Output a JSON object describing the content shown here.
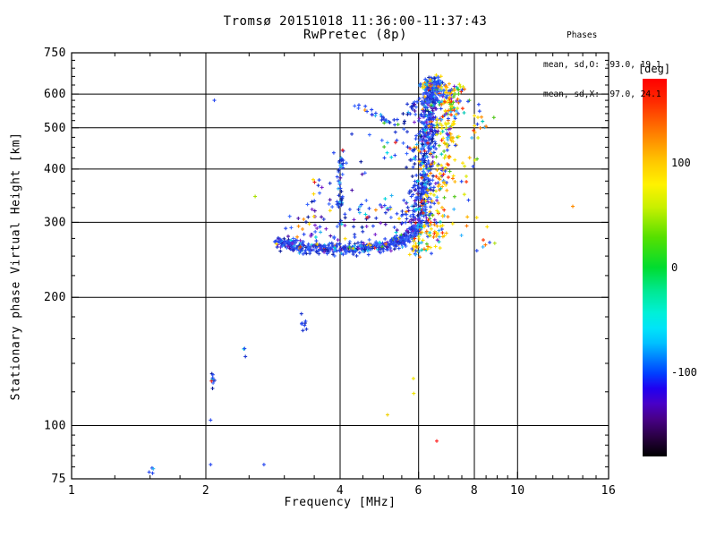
{
  "chart_data": {
    "type": "scatter",
    "title": "Tromsø 20151018 11:36:00-11:37:43",
    "subtitle": "RwPretec (8p)",
    "annotation": {
      "header": "Phases",
      "line_o": "mean, sd,O: -93.0, 19.1",
      "line_x": "mean, sd,X:  97.0, 24.1"
    },
    "xlabel": "Frequency [MHz]",
    "ylabel": "Stationary phase Virtual Height [km]",
    "x_scale": "log",
    "y_scale": "log",
    "xlim": [
      1,
      16
    ],
    "ylim": [
      75,
      750
    ],
    "x_major": [
      1,
      2,
      4,
      6,
      8,
      10,
      16
    ],
    "x_grid": [
      2,
      4,
      6,
      8,
      10
    ],
    "x_minor": [
      1.25,
      1.5,
      1.75,
      2.5,
      3,
      3.5,
      4.5,
      5,
      5.5,
      6.5,
      7,
      7.5,
      8.5,
      9,
      9.5,
      11,
      12,
      13,
      14,
      15
    ],
    "y_major": [
      75,
      100,
      200,
      300,
      400,
      500,
      600,
      750
    ],
    "y_grid": [
      100,
      200,
      300,
      400,
      500,
      600
    ],
    "y_minor": [
      80,
      85,
      90,
      95,
      120,
      140,
      160,
      180,
      225,
      250,
      275,
      325,
      350,
      375,
      425,
      450,
      475,
      520,
      540,
      560,
      580,
      630,
      660,
      690,
      720
    ],
    "grid": true,
    "colorbar": {
      "label": "[deg]",
      "range": [
        -180,
        180
      ],
      "ticks": [
        {
          "value": 100
        },
        {
          "value": 0
        },
        {
          "value": -100
        }
      ],
      "stops": [
        [
          0,
          "#ff0000"
        ],
        [
          6,
          "#ff2a00"
        ],
        [
          14,
          "#ff7a00"
        ],
        [
          22,
          "#ffc800"
        ],
        [
          28,
          "#fff200"
        ],
        [
          34,
          "#c8f000"
        ],
        [
          42,
          "#55e000"
        ],
        [
          50,
          "#00dc30"
        ],
        [
          56,
          "#00e890"
        ],
        [
          62,
          "#00f0d8"
        ],
        [
          66,
          "#00e4f8"
        ],
        [
          70,
          "#00c0ff"
        ],
        [
          74,
          "#0080ff"
        ],
        [
          78,
          "#0040ff"
        ],
        [
          82,
          "#2000f0"
        ],
        [
          86,
          "#4800c8"
        ],
        [
          90,
          "#480088"
        ],
        [
          95,
          "#280040"
        ],
        [
          100,
          "#000000"
        ]
      ]
    },
    "seed": 20151018,
    "palettes": {
      "O": [
        [
          "#2547f0",
          30
        ],
        [
          "#1c35cf",
          16
        ],
        [
          "#3b69ff",
          16
        ],
        [
          "#0f1f9c",
          8
        ],
        [
          "#2ab3f2",
          7
        ],
        [
          "#7a22cc",
          5
        ],
        [
          "#4a10a8",
          3
        ],
        [
          "#00d4dc",
          3
        ],
        [
          "#ffd800",
          2
        ],
        [
          "#ff8c00",
          2
        ],
        [
          "#e82020",
          1.5
        ],
        [
          "#3fc420",
          1.5
        ]
      ],
      "OS": [
        [
          "#2547f0",
          22
        ],
        [
          "#1c35cf",
          10
        ],
        [
          "#3b69ff",
          12
        ],
        [
          "#0f1f9c",
          6
        ],
        [
          "#2ab3f2",
          8
        ],
        [
          "#7a22cc",
          8
        ],
        [
          "#4a10a8",
          5
        ],
        [
          "#00d4dc",
          5
        ],
        [
          "#ffd800",
          3
        ],
        [
          "#ff8c00",
          3
        ],
        [
          "#e82020",
          2
        ],
        [
          "#3fc420",
          3
        ]
      ],
      "X": [
        [
          "#ffe000",
          20
        ],
        [
          "#ffb400",
          13
        ],
        [
          "#ff7800",
          9
        ],
        [
          "#ff3000",
          7
        ],
        [
          "#dce800",
          9
        ],
        [
          "#54c81e",
          8
        ],
        [
          "#00c8b4",
          5
        ],
        [
          "#33b4ff",
          5
        ],
        [
          "#2547f0",
          8
        ],
        [
          "#7a22cc",
          3
        ]
      ],
      "XS": [
        [
          "#ffe000",
          14
        ],
        [
          "#ffb400",
          10
        ],
        [
          "#ff7800",
          8
        ],
        [
          "#ff3000",
          6
        ],
        [
          "#dce800",
          6
        ],
        [
          "#54c81e",
          6
        ],
        [
          "#00c8b4",
          4
        ],
        [
          "#33b4ff",
          6
        ],
        [
          "#2547f0",
          12
        ],
        [
          "#7a22cc",
          3
        ]
      ],
      "MIX": [
        [
          "#2547f0",
          22
        ],
        [
          "#1c35cf",
          10
        ],
        [
          "#3b69ff",
          12
        ],
        [
          "#2ab3f2",
          6
        ],
        [
          "#7a22cc",
          4
        ],
        [
          "#ffe000",
          12
        ],
        [
          "#ffb400",
          9
        ],
        [
          "#ff7800",
          6
        ],
        [
          "#ff3000",
          5
        ],
        [
          "#54c81e",
          5
        ],
        [
          "#00c8b4",
          3
        ],
        [
          "#dce800",
          6
        ]
      ],
      "GB": [
        [
          "#66dd22",
          1
        ],
        [
          "#2547f0",
          2
        ],
        [
          "#2ab3f2",
          1
        ]
      ]
    },
    "series": [
      {
        "name": "f-layer-band",
        "count": 520,
        "palette": "O",
        "f_sd_log": 0.008,
        "h_sd": 4.5,
        "anchors": [
          [
            2.92,
            271
          ],
          [
            3.2,
            263
          ],
          [
            3.7,
            261
          ],
          [
            4.3,
            261
          ],
          [
            4.9,
            264
          ],
          [
            5.4,
            270
          ],
          [
            5.75,
            280
          ],
          [
            6.0,
            296
          ]
        ]
      },
      {
        "name": "band-halo",
        "count": 120,
        "palette": "OS",
        "f_sd_log": 0.012,
        "h_sd": 22,
        "anchors": [
          [
            3.05,
            292
          ],
          [
            3.35,
            300
          ],
          [
            3.6,
            315
          ],
          [
            3.9,
            305
          ],
          [
            4.3,
            300
          ],
          [
            4.9,
            305
          ],
          [
            5.3,
            315
          ],
          [
            5.7,
            330
          ]
        ]
      },
      {
        "name": "o-mode-rise",
        "count": 540,
        "palette": "O",
        "f_sd_log": 0.011,
        "h_sd": 11,
        "anchors": [
          [
            6.02,
            300
          ],
          [
            6.12,
            335
          ],
          [
            6.2,
            380
          ],
          [
            6.26,
            430
          ],
          [
            6.3,
            480
          ],
          [
            6.33,
            530
          ],
          [
            6.38,
            575
          ],
          [
            6.45,
            620
          ],
          [
            6.5,
            650
          ]
        ]
      },
      {
        "name": "x-mode-rise",
        "count": 240,
        "palette": "X",
        "f_sd_log": 0.013,
        "h_sd": 13,
        "anchors": [
          [
            6.4,
            278
          ],
          [
            6.55,
            295
          ],
          [
            6.7,
            330
          ],
          [
            6.8,
            375
          ],
          [
            6.88,
            430
          ],
          [
            6.95,
            490
          ],
          [
            7.0,
            545
          ],
          [
            7.08,
            595
          ],
          [
            7.12,
            625
          ]
        ]
      },
      {
        "name": "x-mode-knee",
        "count": 45,
        "palette": "X",
        "f_sd_log": 0.01,
        "h_sd": 8,
        "anchors": [
          [
            5.9,
            262
          ],
          [
            6.2,
            268
          ],
          [
            6.5,
            280
          ]
        ]
      },
      {
        "name": "top-cluster",
        "count": 75,
        "palette": "MIX",
        "f_sd_log": 0.008,
        "h_sd": 16,
        "anchors": [
          [
            6.15,
            615
          ],
          [
            6.4,
            635
          ],
          [
            6.65,
            625
          ],
          [
            6.85,
            605
          ]
        ]
      },
      {
        "name": "second-hop",
        "count": 26,
        "palette": "O",
        "f_sd_log": 0.005,
        "h_sd": 7,
        "anchors": [
          [
            4.35,
            563
          ],
          [
            4.75,
            542
          ],
          [
            5.15,
            517
          ],
          [
            5.5,
            497
          ]
        ]
      },
      {
        "name": "second-hop-upper",
        "count": 20,
        "palette": "O",
        "f_sd_log": 0.007,
        "h_sd": 10,
        "anchors": [
          [
            5.45,
            520
          ],
          [
            5.7,
            545
          ],
          [
            5.95,
            572
          ]
        ]
      },
      {
        "name": "spread-4mhz",
        "count": 42,
        "palette": "O",
        "f_sd_log": 0.003,
        "h_sd": 12,
        "anchors": [
          [
            3.99,
            300
          ],
          [
            4.01,
            340
          ],
          [
            4.0,
            375
          ],
          [
            4.03,
            410
          ],
          [
            4.0,
            430
          ]
        ]
      },
      {
        "name": "mid-sparse",
        "count": 30,
        "palette": "OS",
        "f_sd_log": 0.03,
        "h_sd": 28,
        "anchors": [
          [
            3.5,
            360
          ],
          [
            4.1,
            395
          ],
          [
            4.7,
            420
          ],
          [
            5.3,
            445
          ],
          [
            5.8,
            465
          ]
        ]
      },
      {
        "name": "rise-fringe-left",
        "count": 30,
        "palette": "OS",
        "f_sd_log": 0.012,
        "h_sd": 25,
        "anchors": [
          [
            5.85,
            320
          ],
          [
            5.9,
            380
          ],
          [
            5.95,
            440
          ],
          [
            6.0,
            500
          ]
        ]
      },
      {
        "name": "right-sparse",
        "count": 40,
        "palette": "XS",
        "f_sd_log": 0.018,
        "h_sd": 38,
        "anchors": [
          [
            7.25,
            330
          ],
          [
            7.5,
            390
          ],
          [
            7.75,
            450
          ],
          [
            8.0,
            505
          ],
          [
            8.3,
            545
          ]
        ]
      },
      {
        "name": "right-low",
        "count": 10,
        "palette": "XS",
        "f_sd_log": 0.02,
        "h_sd": 15,
        "anchors": [
          [
            7.4,
            300
          ],
          [
            8.3,
            290
          ],
          [
            9.0,
            275
          ]
        ]
      },
      {
        "name": "e-cluster-2mhz",
        "count": 9,
        "palette": "O",
        "f_sd_log": 0.003,
        "h_sd": 2.5,
        "anchors": [
          [
            2.04,
            127
          ],
          [
            2.09,
            130
          ]
        ]
      },
      {
        "name": "e-pair-2p4",
        "count": 3,
        "palette": "O",
        "f_sd_log": 0.002,
        "h_sd": 2,
        "anchors": [
          [
            2.43,
            151
          ],
          [
            2.47,
            149
          ]
        ]
      },
      {
        "name": "low-cluster-1p5",
        "count": 4,
        "palette": "GB",
        "f_sd_log": 0.002,
        "h_sd": 1.5,
        "anchors": [
          [
            1.5,
            77
          ],
          [
            1.53,
            78
          ]
        ]
      },
      {
        "name": "e-cluster-3p3",
        "count": 8,
        "palette": "O",
        "f_sd_log": 0.004,
        "h_sd": 3.5,
        "anchors": [
          [
            3.27,
            177
          ],
          [
            3.38,
            172
          ]
        ]
      }
    ],
    "singles": [
      [
        2.09,
        580,
        "#2a4af0"
      ],
      [
        2.05,
        103,
        "#2a4af0"
      ],
      [
        2.05,
        81,
        "#2a4af0"
      ],
      [
        2.7,
        81,
        "#2a4af0"
      ],
      [
        2.58,
        345,
        "#a8e000"
      ],
      [
        5.84,
        129,
        "#f0e400"
      ],
      [
        5.85,
        119,
        "#f0e400"
      ],
      [
        5.11,
        106,
        "#f0d000"
      ],
      [
        6.59,
        92,
        "#ff2020"
      ],
      [
        13.3,
        327,
        "#ff8c00"
      ],
      [
        8.89,
        268,
        "#b0e020"
      ],
      [
        7.43,
        578,
        "#2a4af0"
      ],
      [
        8.3,
        530,
        "#ff9000"
      ],
      [
        5.1,
        437,
        "#00d8e8"
      ],
      [
        3.87,
        437,
        "#2a4af0"
      ]
    ]
  }
}
